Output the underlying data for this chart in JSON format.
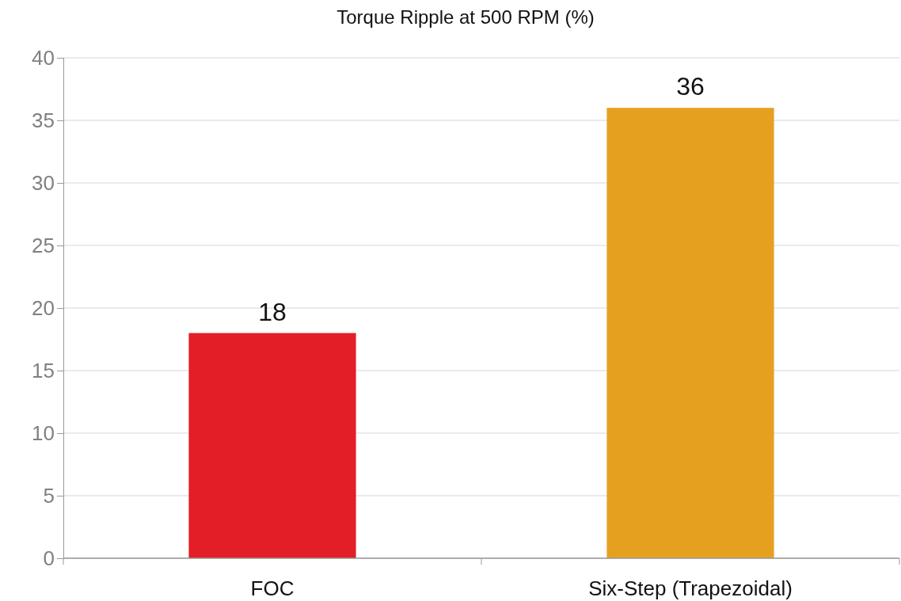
{
  "chart_data": {
    "type": "bar",
    "title": "Torque Ripple at 500 RPM (%)",
    "categories": [
      "FOC",
      "Six-Step (Trapezoidal)"
    ],
    "values": [
      18,
      36
    ],
    "colors": [
      "#e31e26",
      "#e6a020"
    ],
    "ylim": [
      0,
      40
    ],
    "yticks": [
      0,
      5,
      10,
      15,
      20,
      25,
      30,
      35,
      40
    ],
    "grid": "y",
    "data_labels": true
  }
}
